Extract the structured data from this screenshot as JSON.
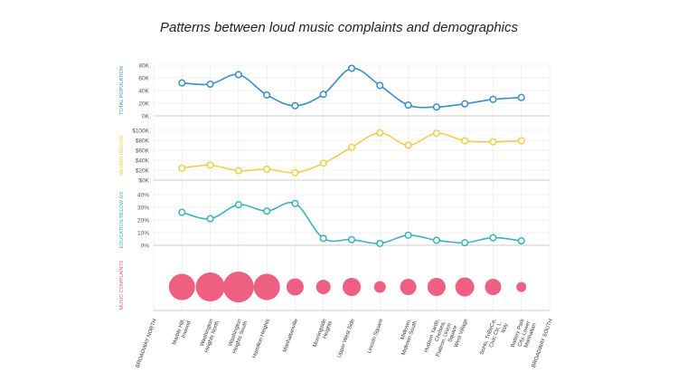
{
  "title": "Patterns between loud music complaints and demographics",
  "colors": {
    "population": "#3a8fc4",
    "income": "#f3cd4a",
    "education": "#3ab3bd",
    "complaints": "#ee5f81",
    "grid": "#e6e6e6",
    "axis": "#bbbbbb"
  },
  "chart_data": {
    "type": "line",
    "title": "Patterns between loud music complaints and demographics",
    "categories": [
      "BROADWAY NORTH",
      "Marble Hill, Inwood",
      "Washington Heights North",
      "Washington Heights South",
      "Hamilton Heights",
      "Manhattanville",
      "Morningside Heights",
      "Upper West Side",
      "Lincoln Square",
      "Midtown, Midtown South",
      "Hudson Yards, Chelsea, Flatiron, Union Square",
      "West Village",
      "SoHo, TriBeCa, Civic Ctr, L. Italy",
      "Battery Park City, Lower Manhattan",
      "BROADWAY SOUTH"
    ],
    "panels": [
      {
        "id": "population",
        "ylabel": "TOTAL POPULATION",
        "ylim": [
          0,
          80000
        ],
        "ticks": [
          "0K",
          "20K",
          "40K",
          "60K",
          "80K"
        ],
        "tick_values": [
          0,
          20000,
          40000,
          60000,
          80000
        ],
        "values": [
          52000,
          50000,
          65000,
          33000,
          16000,
          34000,
          75000,
          48000,
          17000,
          14000,
          19000,
          26000,
          29000
        ]
      },
      {
        "id": "income",
        "ylabel": "MEDIAN INCOME",
        "ylim": [
          0,
          100000
        ],
        "ticks": [
          "$0K",
          "$20K",
          "$40K",
          "$60K",
          "$80K",
          "$100K"
        ],
        "tick_values": [
          0,
          20000,
          40000,
          60000,
          80000,
          100000
        ],
        "values": [
          24000,
          30000,
          19000,
          22000,
          15000,
          34000,
          66000,
          95000,
          70000,
          94000,
          79000,
          77000,
          79000
        ]
      },
      {
        "id": "education",
        "ylabel": "EDUCATION BELOW HS",
        "ylim": [
          0,
          40
        ],
        "ticks": [
          "0%",
          "10%",
          "20%",
          "30%",
          "40%"
        ],
        "tick_values": [
          0,
          10,
          20,
          30,
          40
        ],
        "values": [
          26,
          21,
          32,
          27,
          33,
          5.5,
          4.5,
          1.5,
          8,
          4,
          2,
          6,
          3.5
        ]
      },
      {
        "id": "complaints",
        "ylabel": "MUSIC COMPLAINTS",
        "type": "bubble",
        "values": [
          29,
          32,
          34,
          29,
          19,
          16,
          20,
          13,
          18,
          20,
          21,
          18,
          11
        ]
      }
    ]
  }
}
